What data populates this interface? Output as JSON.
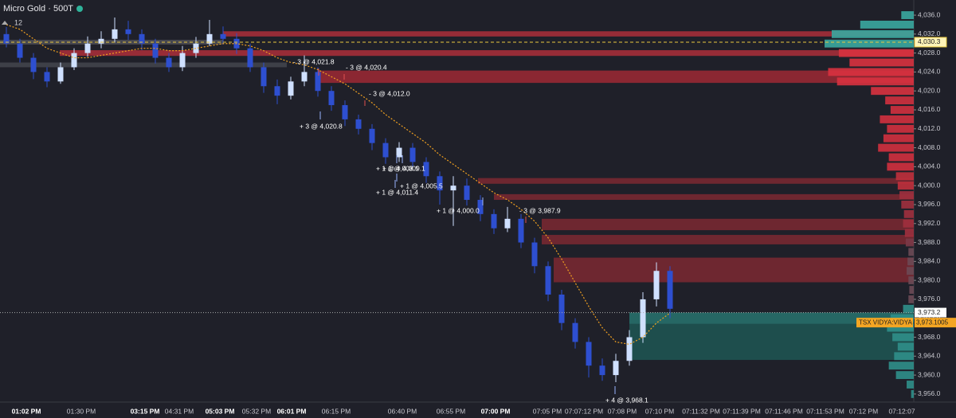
{
  "chart_data": {
    "type": "candlestick",
    "title": "Micro Gold · 500T",
    "badge": "12",
    "categories": [
      "01:02 PM",
      "01:30 PM",
      "03:15 PM",
      "04:31 PM",
      "05:03 PM",
      "05:32 PM",
      "06:01 PM",
      "06:15 PM",
      "06:40 PM",
      "06:55 PM",
      "07:00 PM",
      "07:05 PM",
      "07:07:12 PM",
      "07:08 PM",
      "07:10 PM",
      "07:11:32 PM",
      "07:11:39 PM",
      "07:11:46 PM",
      "07:11:53 PM",
      "07:12 PM",
      "07:12:07"
    ],
    "open": [
      4032,
      4030,
      4027,
      4024,
      4022,
      4025,
      4028,
      4030,
      4031,
      4033,
      4032,
      4030,
      4027,
      4025,
      4028,
      4030,
      4032,
      4031,
      4029,
      4025,
      4021,
      4019,
      4022,
      4024,
      4020,
      4017,
      4014,
      4012,
      4009,
      4006,
      4008,
      4005,
      4002,
      3999,
      4000,
      3997,
      3994,
      3991,
      3993,
      3988,
      3983,
      3977,
      3971,
      3967,
      3962,
      3960,
      3963,
      3968,
      3976,
      3982
    ],
    "high": [
      4033.5,
      4031,
      4028,
      4025,
      4026,
      4029,
      4031.5,
      4032.6,
      4035.5,
      4034.8,
      4033,
      4031,
      4028,
      4029.5,
      4031.4,
      4035,
      4033.6,
      4032.2,
      4030,
      4026,
      4022.4,
      4023,
      4027.5,
      4025,
      4021,
      4018,
      4015,
      4013,
      4010,
      4009.2,
      4009,
      4006,
      4003,
      4002,
      4001.5,
      3998,
      3995,
      3995.5,
      3994,
      3989,
      3984,
      3978,
      3972,
      3968,
      3963.5,
      3964.5,
      3969.5,
      3977.5,
      3983.8,
      3983
    ],
    "low": [
      4029.2,
      4026,
      4022.5,
      4020.8,
      4021.5,
      4024.4,
      4027.2,
      4029,
      4030.2,
      4030.8,
      4028.6,
      4025.8,
      4024,
      4024.2,
      4027,
      4029.5,
      4029.8,
      4027.8,
      4024,
      4019.6,
      4017.2,
      4018.2,
      4021,
      4018.8,
      4015.8,
      4012.6,
      4010.8,
      4007.5,
      4004.6,
      4005,
      4003.8,
      4000.6,
      3996,
      3991.5,
      3995.8,
      3992.5,
      3989.8,
      3990.2,
      3986.8,
      3981.5,
      3975.6,
      3969.5,
      3965.6,
      3959.5,
      3958.8,
      3958.5,
      3962,
      3966.8,
      3974.5,
      3972
    ],
    "close": [
      4030,
      4027,
      4024,
      4022,
      4025,
      4028,
      4030,
      4031,
      4033,
      4032,
      4030,
      4027,
      4025,
      4028,
      4030,
      4032,
      4031,
      4029,
      4025,
      4021,
      4019,
      4022,
      4024,
      4020,
      4017,
      4014,
      4012,
      4009,
      4006,
      4008,
      4005,
      4002,
      3999,
      4000,
      3997,
      3994,
      3991,
      3993,
      3988,
      3983,
      3977,
      3971,
      3967,
      3962,
      3960,
      3963,
      3968,
      3976,
      3982,
      3974
    ],
    "up_color": "#cfe0ff",
    "down_color": "#2e4fd0",
    "ma": {
      "color": "#f0a020",
      "values": [
        4034,
        4033,
        4031,
        4029,
        4028,
        4027,
        4027,
        4027.5,
        4028,
        4028.5,
        4029,
        4029,
        4028.5,
        4028.5,
        4029,
        4029.5,
        4030,
        4030,
        4029.5,
        4028.5,
        4027,
        4026,
        4025.5,
        4024.5,
        4023,
        4021.5,
        4019.5,
        4017.5,
        4015,
        4013,
        4011,
        4009,
        4006.5,
        4004.5,
        4002.5,
        4000.5,
        3998.5,
        3997,
        3995,
        3992.5,
        3989,
        3984.5,
        3979.5,
        3974.5,
        3970,
        3967,
        3966.5,
        3968,
        3971,
        3973.1
      ]
    },
    "ylim": [
      3954.3,
      4039.2
    ],
    "yticks": [
      {
        "value": 3956,
        "label": "3,956.0"
      },
      {
        "value": 3960,
        "label": "3,960.0"
      },
      {
        "value": 3964,
        "label": "3,964.0"
      },
      {
        "value": 3968,
        "label": "3,968.0"
      },
      {
        "value": 3972,
        "label": "3,972.0"
      },
      {
        "value": 3976,
        "label": "3,976.0"
      },
      {
        "value": 3980,
        "label": "3,980.0"
      },
      {
        "value": 3984,
        "label": "3,984.0"
      },
      {
        "value": 3988,
        "label": "3,988.0"
      },
      {
        "value": 3992,
        "label": "3,992.0"
      },
      {
        "value": 3996,
        "label": "3,996.0"
      },
      {
        "value": 4000,
        "label": "4,000.0"
      },
      {
        "value": 4004,
        "label": "4,004.0"
      },
      {
        "value": 4008,
        "label": "4,008.0"
      },
      {
        "value": 4012,
        "label": "4,012.0"
      },
      {
        "value": 4016,
        "label": "4,016.0"
      },
      {
        "value": 4020,
        "label": "4,020.0"
      },
      {
        "value": 4024,
        "label": "4,024.0"
      },
      {
        "value": 4028,
        "label": "4,028.0"
      },
      {
        "value": 4032,
        "label": "4,032.0"
      },
      {
        "value": 4036,
        "label": "4,036.0"
      }
    ],
    "zones": [
      {
        "low": 4029.8,
        "high": 4030.8,
        "color": "#55565e"
      },
      {
        "low": 4025,
        "high": 4026,
        "color": "#4a4b53"
      },
      {
        "low": 4031.5,
        "high": 4032.6,
        "color": "#c0303c"
      },
      {
        "low": 4027.4,
        "high": 4028.6,
        "color": "#c0303c"
      },
      {
        "low": 4021.7,
        "high": 4024.3,
        "color": "#b02a36"
      },
      {
        "low": 4000.4,
        "high": 4001.6,
        "color": "#8a2a33"
      },
      {
        "low": 3997,
        "high": 3998.2,
        "color": "#8a2a33"
      },
      {
        "low": 3990.6,
        "high": 3993,
        "color": "#8a2a33"
      },
      {
        "low": 3987.6,
        "high": 3989.6,
        "color": "#8a2a33"
      },
      {
        "low": 3979.6,
        "high": 3984.8,
        "color": "#8a2a33"
      },
      {
        "low": 3970.8,
        "high": 3973.2,
        "color": "#2a7f78"
      },
      {
        "low": 3963.2,
        "high": 3970.8,
        "color": "#1f5e5a"
      }
    ],
    "profile": {
      "prices": [
        3956,
        3958,
        3960,
        3962,
        3964,
        3966,
        3968,
        3970,
        3972,
        3974,
        3976,
        3978,
        3980,
        3982,
        3984,
        3986,
        3988,
        3990,
        3992,
        3994,
        3996,
        3998,
        4000,
        4002,
        4004,
        4006,
        4008,
        4010,
        4012,
        4014,
        4016,
        4018,
        4020,
        4022,
        4024,
        4026,
        4028,
        4030,
        4032,
        4034,
        4036
      ],
      "volumes": [
        3,
        8,
        20,
        28,
        22,
        18,
        24,
        30,
        26,
        12,
        6,
        5,
        6,
        8,
        7,
        6,
        9,
        10,
        12,
        11,
        14,
        16,
        18,
        20,
        30,
        28,
        40,
        34,
        30,
        38,
        26,
        32,
        48,
        86,
        96,
        72,
        84,
        100,
        92,
        60,
        14
      ],
      "colors": [
        "#2f8f8a",
        "#2f8f8a",
        "#2f8f8a",
        "#2f8f8a",
        "#2f8f8a",
        "#2f8f8a",
        "#2f8f8a",
        "#2f8f8a",
        "#2f8f8a",
        "#2f8f8a",
        "#6b4a55",
        "#6b4a55",
        "#6b4a55",
        "#6b4a55",
        "#6b4a55",
        "#6b4a55",
        "#7a3a48",
        "#a0303e",
        "#a0303e",
        "#a0303e",
        "#a0303e",
        "#a0303e",
        "#c0303c",
        "#c0303c",
        "#d0303e",
        "#d0303e",
        "#d0303e",
        "#d0303e",
        "#d0303e",
        "#d0303e",
        "#d0303e",
        "#d0303e",
        "#d8323f",
        "#d8323f",
        "#d8323f",
        "#d8323f",
        "#d8323f",
        "#3aa8a0",
        "#3aa8a0",
        "#3aa8a0",
        "#3aa8a0"
      ]
    },
    "current_price": {
      "value": 4030.3,
      "label": "4,030.3"
    },
    "last_price": {
      "value": 3973.2,
      "label": "3,973.2"
    },
    "indicator": {
      "name": "TSX VIDYA:VIDYA",
      "value": 3973.1005,
      "label": "3,973.1005"
    },
    "trades": [
      "- 3 @ 4,021.8",
      "- 3 @ 4,020.4",
      "- 3 @ 4,012.0",
      "+ 3 @ 4,020.8",
      "+ 1 @ 4,008.1",
      "+ 1 @ 4,009.1",
      "+ 1 @ 4,005.5",
      "+ 1 @ 4,011.4",
      "+ 1 @ 4,000.0",
      "- 3 @ 3,987.9",
      "+ 4 @ 3,968.1"
    ]
  }
}
